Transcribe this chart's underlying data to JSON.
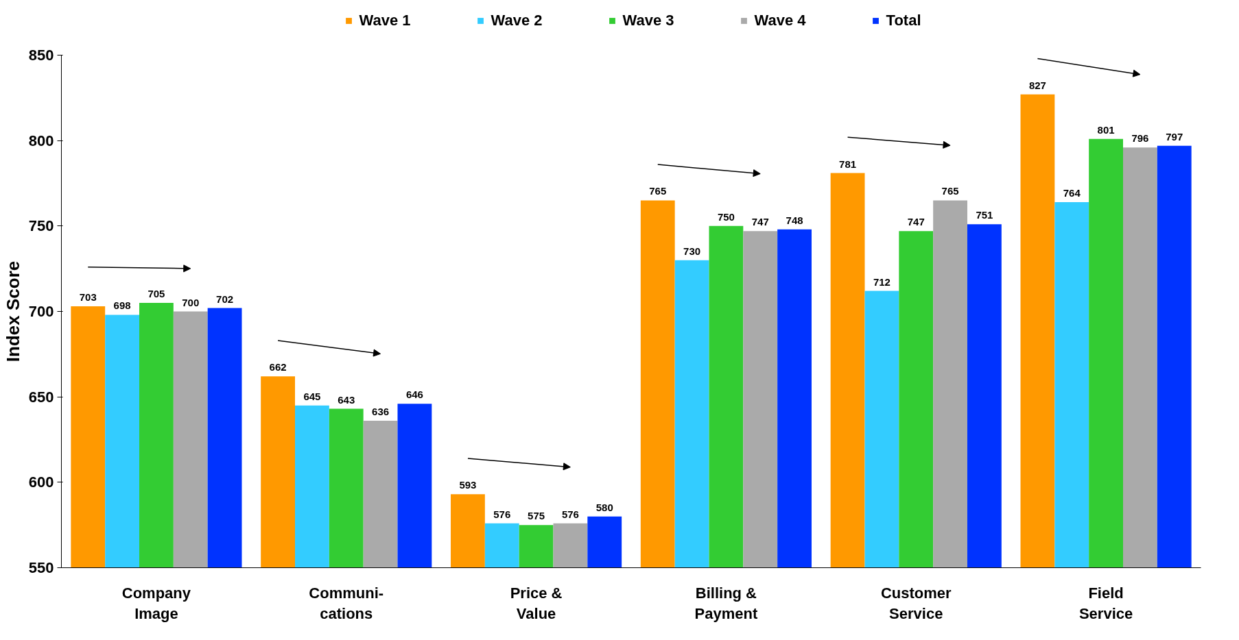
{
  "chart_data": {
    "type": "bar",
    "ylabel": "Index Score",
    "categories": [
      "Company\nImage",
      "Communi-\ncations",
      "Price &\nValue",
      "Billing &\nPayment",
      "Customer\nService",
      "Field\nService"
    ],
    "series": [
      {
        "name": "Wave 1",
        "color": "#ff9900",
        "values": [
          703,
          662,
          593,
          765,
          781,
          827
        ]
      },
      {
        "name": "Wave 2",
        "color": "#33ccff",
        "values": [
          698,
          645,
          576,
          730,
          712,
          764
        ]
      },
      {
        "name": "Wave 3",
        "color": "#33cc33",
        "values": [
          705,
          643,
          575,
          750,
          747,
          801
        ]
      },
      {
        "name": "Wave 4",
        "color": "#aaaaaa",
        "values": [
          700,
          636,
          576,
          747,
          765,
          796
        ]
      },
      {
        "name": "Total",
        "color": "#0033ff",
        "values": [
          702,
          646,
          580,
          748,
          751,
          797
        ]
      }
    ],
    "ylim": [
      550,
      850
    ],
    "yticks": [
      550,
      600,
      650,
      700,
      750,
      800,
      850
    ],
    "data_labels": true,
    "grid": false,
    "legend": "top"
  }
}
